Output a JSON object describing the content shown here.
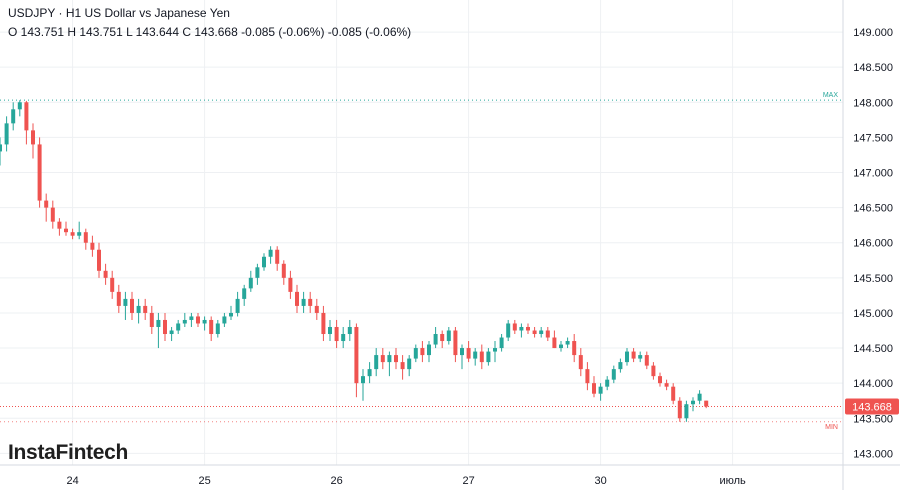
{
  "header": {
    "symbol": "USDJPY",
    "separator": "·",
    "timeframe": "H1",
    "description": "US Dollar vs Japanese Yen",
    "ohlc_text": "O 143.751 H 143.751 L 143.644 C 143.668 -0.085 (-0.06%) -0.085 (-0.06%)"
  },
  "watermark": "InstaFintech",
  "chart_data": {
    "type": "candlestick",
    "title": "USDJPY · H1 US Dollar vs Japanese Yen",
    "ylim": [
      142.92,
      149.3
    ],
    "y_ticks": [
      "149.000",
      "148.500",
      "148.000",
      "147.500",
      "147.000",
      "146.500",
      "146.000",
      "145.500",
      "145.000",
      "144.500",
      "144.000",
      "143.500",
      "143.000"
    ],
    "x_labels": [
      {
        "label": "24",
        "index": 11
      },
      {
        "label": "25",
        "index": 31
      },
      {
        "label": "26",
        "index": 51
      },
      {
        "label": "27",
        "index": 71
      },
      {
        "label": "30",
        "index": 91
      },
      {
        "label": "июль",
        "index": 111
      }
    ],
    "max": {
      "label": "MAX",
      "value": 148.03
    },
    "min": {
      "label": "MIN",
      "value": 143.45
    },
    "last_price": {
      "label": "143.668",
      "value": 143.668
    },
    "colors": {
      "up": "#26a69a",
      "down": "#ef5350",
      "grid": "#eef0f3",
      "max_line": "#26a69a",
      "min_line": "#ef5350",
      "price_line": "#ef5350",
      "axis_text": "#131722"
    },
    "candles": [
      [
        147.3,
        147.5,
        147.1,
        147.4
      ],
      [
        147.4,
        147.8,
        147.3,
        147.7
      ],
      [
        147.7,
        148.0,
        147.6,
        147.9
      ],
      [
        147.9,
        148.03,
        147.8,
        148.0
      ],
      [
        148.0,
        148.02,
        147.4,
        147.6
      ],
      [
        147.6,
        147.7,
        147.2,
        147.4
      ],
      [
        147.4,
        147.5,
        146.5,
        146.6
      ],
      [
        146.6,
        146.7,
        146.3,
        146.5
      ],
      [
        146.5,
        146.6,
        146.2,
        146.3
      ],
      [
        146.3,
        146.35,
        146.1,
        146.2
      ],
      [
        146.2,
        146.3,
        146.1,
        146.15
      ],
      [
        146.15,
        146.2,
        146.05,
        146.1
      ],
      [
        146.1,
        146.3,
        146.05,
        146.15
      ],
      [
        146.15,
        146.2,
        145.9,
        146.0
      ],
      [
        146.0,
        146.1,
        145.8,
        145.9
      ],
      [
        145.9,
        146.0,
        145.5,
        145.6
      ],
      [
        145.6,
        145.7,
        145.4,
        145.5
      ],
      [
        145.5,
        145.6,
        145.2,
        145.3
      ],
      [
        145.3,
        145.4,
        145.0,
        145.1
      ],
      [
        145.1,
        145.3,
        144.9,
        145.2
      ],
      [
        145.2,
        145.3,
        144.9,
        145.0
      ],
      [
        145.0,
        145.2,
        144.85,
        145.1
      ],
      [
        145.1,
        145.2,
        144.9,
        145.0
      ],
      [
        145.0,
        145.1,
        144.7,
        144.8
      ],
      [
        144.8,
        145.0,
        144.5,
        144.9
      ],
      [
        144.9,
        145.0,
        144.6,
        144.7
      ],
      [
        144.7,
        144.8,
        144.6,
        144.75
      ],
      [
        144.75,
        144.9,
        144.7,
        144.85
      ],
      [
        144.85,
        145.0,
        144.8,
        144.9
      ],
      [
        144.9,
        145.0,
        144.8,
        144.95
      ],
      [
        144.95,
        145.0,
        144.8,
        144.85
      ],
      [
        144.85,
        144.95,
        144.75,
        144.9
      ],
      [
        144.9,
        144.95,
        144.6,
        144.7
      ],
      [
        144.7,
        144.9,
        144.65,
        144.85
      ],
      [
        144.85,
        145.0,
        144.8,
        144.95
      ],
      [
        144.95,
        145.1,
        144.9,
        145.0
      ],
      [
        145.0,
        145.3,
        144.95,
        145.2
      ],
      [
        145.2,
        145.4,
        145.1,
        145.35
      ],
      [
        145.35,
        145.6,
        145.3,
        145.5
      ],
      [
        145.5,
        145.7,
        145.4,
        145.65
      ],
      [
        145.65,
        145.85,
        145.6,
        145.8
      ],
      [
        145.8,
        145.95,
        145.7,
        145.9
      ],
      [
        145.9,
        145.95,
        145.6,
        145.7
      ],
      [
        145.7,
        145.75,
        145.4,
        145.5
      ],
      [
        145.5,
        145.6,
        145.2,
        145.3
      ],
      [
        145.3,
        145.4,
        145.0,
        145.1
      ],
      [
        145.1,
        145.3,
        145.0,
        145.2
      ],
      [
        145.2,
        145.3,
        145.0,
        145.1
      ],
      [
        145.1,
        145.2,
        144.9,
        145.0
      ],
      [
        145.0,
        145.1,
        144.6,
        144.7
      ],
      [
        144.7,
        144.9,
        144.6,
        144.8
      ],
      [
        144.8,
        144.9,
        144.5,
        144.6
      ],
      [
        144.6,
        144.8,
        144.5,
        144.7
      ],
      [
        144.7,
        144.9,
        144.6,
        144.8
      ],
      [
        144.8,
        144.85,
        143.8,
        144.0
      ],
      [
        144.0,
        144.2,
        143.75,
        144.1
      ],
      [
        144.1,
        144.3,
        144.0,
        144.2
      ],
      [
        144.2,
        144.5,
        144.1,
        144.4
      ],
      [
        144.4,
        144.5,
        144.2,
        144.3
      ],
      [
        144.3,
        144.45,
        144.1,
        144.4
      ],
      [
        144.4,
        144.5,
        144.2,
        144.3
      ],
      [
        144.3,
        144.4,
        144.05,
        144.2
      ],
      [
        144.2,
        144.4,
        144.1,
        144.35
      ],
      [
        144.35,
        144.55,
        144.3,
        144.5
      ],
      [
        144.5,
        144.6,
        144.3,
        144.4
      ],
      [
        144.4,
        144.6,
        144.3,
        144.55
      ],
      [
        144.55,
        144.8,
        144.5,
        144.7
      ],
      [
        144.7,
        144.75,
        144.5,
        144.6
      ],
      [
        144.6,
        144.8,
        144.55,
        144.75
      ],
      [
        144.75,
        144.8,
        144.3,
        144.4
      ],
      [
        144.4,
        144.55,
        144.2,
        144.5
      ],
      [
        144.5,
        144.6,
        144.3,
        144.35
      ],
      [
        144.35,
        144.5,
        144.25,
        144.45
      ],
      [
        144.45,
        144.55,
        144.2,
        144.3
      ],
      [
        144.3,
        144.5,
        144.25,
        144.45
      ],
      [
        144.45,
        144.6,
        144.3,
        144.5
      ],
      [
        144.5,
        144.7,
        144.45,
        144.65
      ],
      [
        144.65,
        144.9,
        144.6,
        144.85
      ],
      [
        144.85,
        144.9,
        144.7,
        144.75
      ],
      [
        144.75,
        144.85,
        144.65,
        144.8
      ],
      [
        144.8,
        144.85,
        144.7,
        144.75
      ],
      [
        144.75,
        144.8,
        144.65,
        144.7
      ],
      [
        144.7,
        144.8,
        144.65,
        144.75
      ],
      [
        144.75,
        144.8,
        144.6,
        144.65
      ],
      [
        144.65,
        144.75,
        144.5,
        144.5
      ],
      [
        144.5,
        144.6,
        144.45,
        144.55
      ],
      [
        144.55,
        144.65,
        144.5,
        144.6
      ],
      [
        144.6,
        144.7,
        144.3,
        144.4
      ],
      [
        144.4,
        144.5,
        144.1,
        144.2
      ],
      [
        144.2,
        144.3,
        143.9,
        144.0
      ],
      [
        144.0,
        144.1,
        143.8,
        143.85
      ],
      [
        143.85,
        144.0,
        143.75,
        143.95
      ],
      [
        143.95,
        144.1,
        143.9,
        144.05
      ],
      [
        144.05,
        144.25,
        144.0,
        144.2
      ],
      [
        144.2,
        144.35,
        144.15,
        144.3
      ],
      [
        144.3,
        144.5,
        144.25,
        144.45
      ],
      [
        144.45,
        144.5,
        144.3,
        144.35
      ],
      [
        144.35,
        144.45,
        144.3,
        144.4
      ],
      [
        144.4,
        144.45,
        144.2,
        144.25
      ],
      [
        144.25,
        144.3,
        144.05,
        144.1
      ],
      [
        144.1,
        144.15,
        143.95,
        144.0
      ],
      [
        144.0,
        144.05,
        143.9,
        143.95
      ],
      [
        143.95,
        144.0,
        143.7,
        143.75
      ],
      [
        143.75,
        143.8,
        143.45,
        143.5
      ],
      [
        143.5,
        143.75,
        143.45,
        143.7
      ],
      [
        143.7,
        143.8,
        143.6,
        143.75
      ],
      [
        143.75,
        143.9,
        143.7,
        143.85
      ],
      [
        143.751,
        143.751,
        143.644,
        143.668
      ]
    ]
  }
}
